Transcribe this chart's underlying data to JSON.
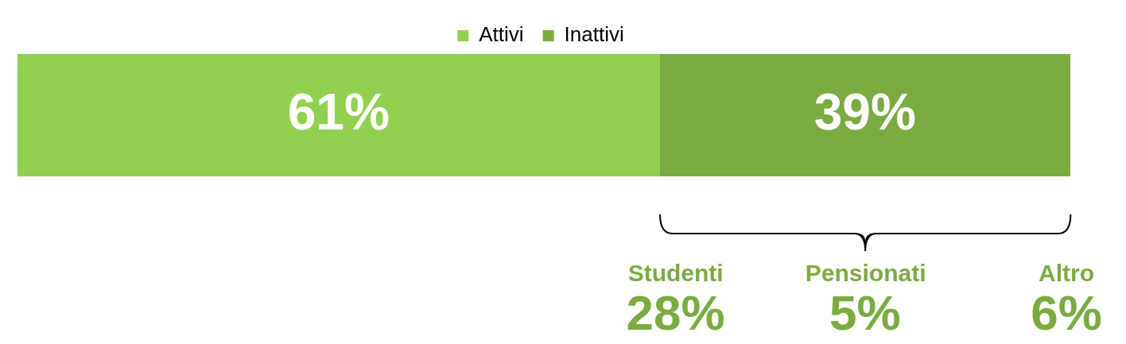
{
  "chart_data": {
    "type": "bar",
    "orientation": "horizontal",
    "stacked": true,
    "categories": [
      null
    ],
    "series": [
      {
        "name": "Attivi",
        "color": "#92d050",
        "values": [
          61
        ],
        "value_labels": [
          "61%"
        ]
      },
      {
        "name": "Inattivi",
        "color": "#7aab40",
        "values": [
          39
        ],
        "value_labels": [
          "39%"
        ]
      }
    ],
    "xlim": [
      0,
      100
    ],
    "tick_labels": false,
    "grid": false,
    "legend": "top",
    "annotations": [
      "Studenti",
      "28%",
      "Pensionati",
      "5%",
      "Altro",
      "6%"
    ]
  }
}
